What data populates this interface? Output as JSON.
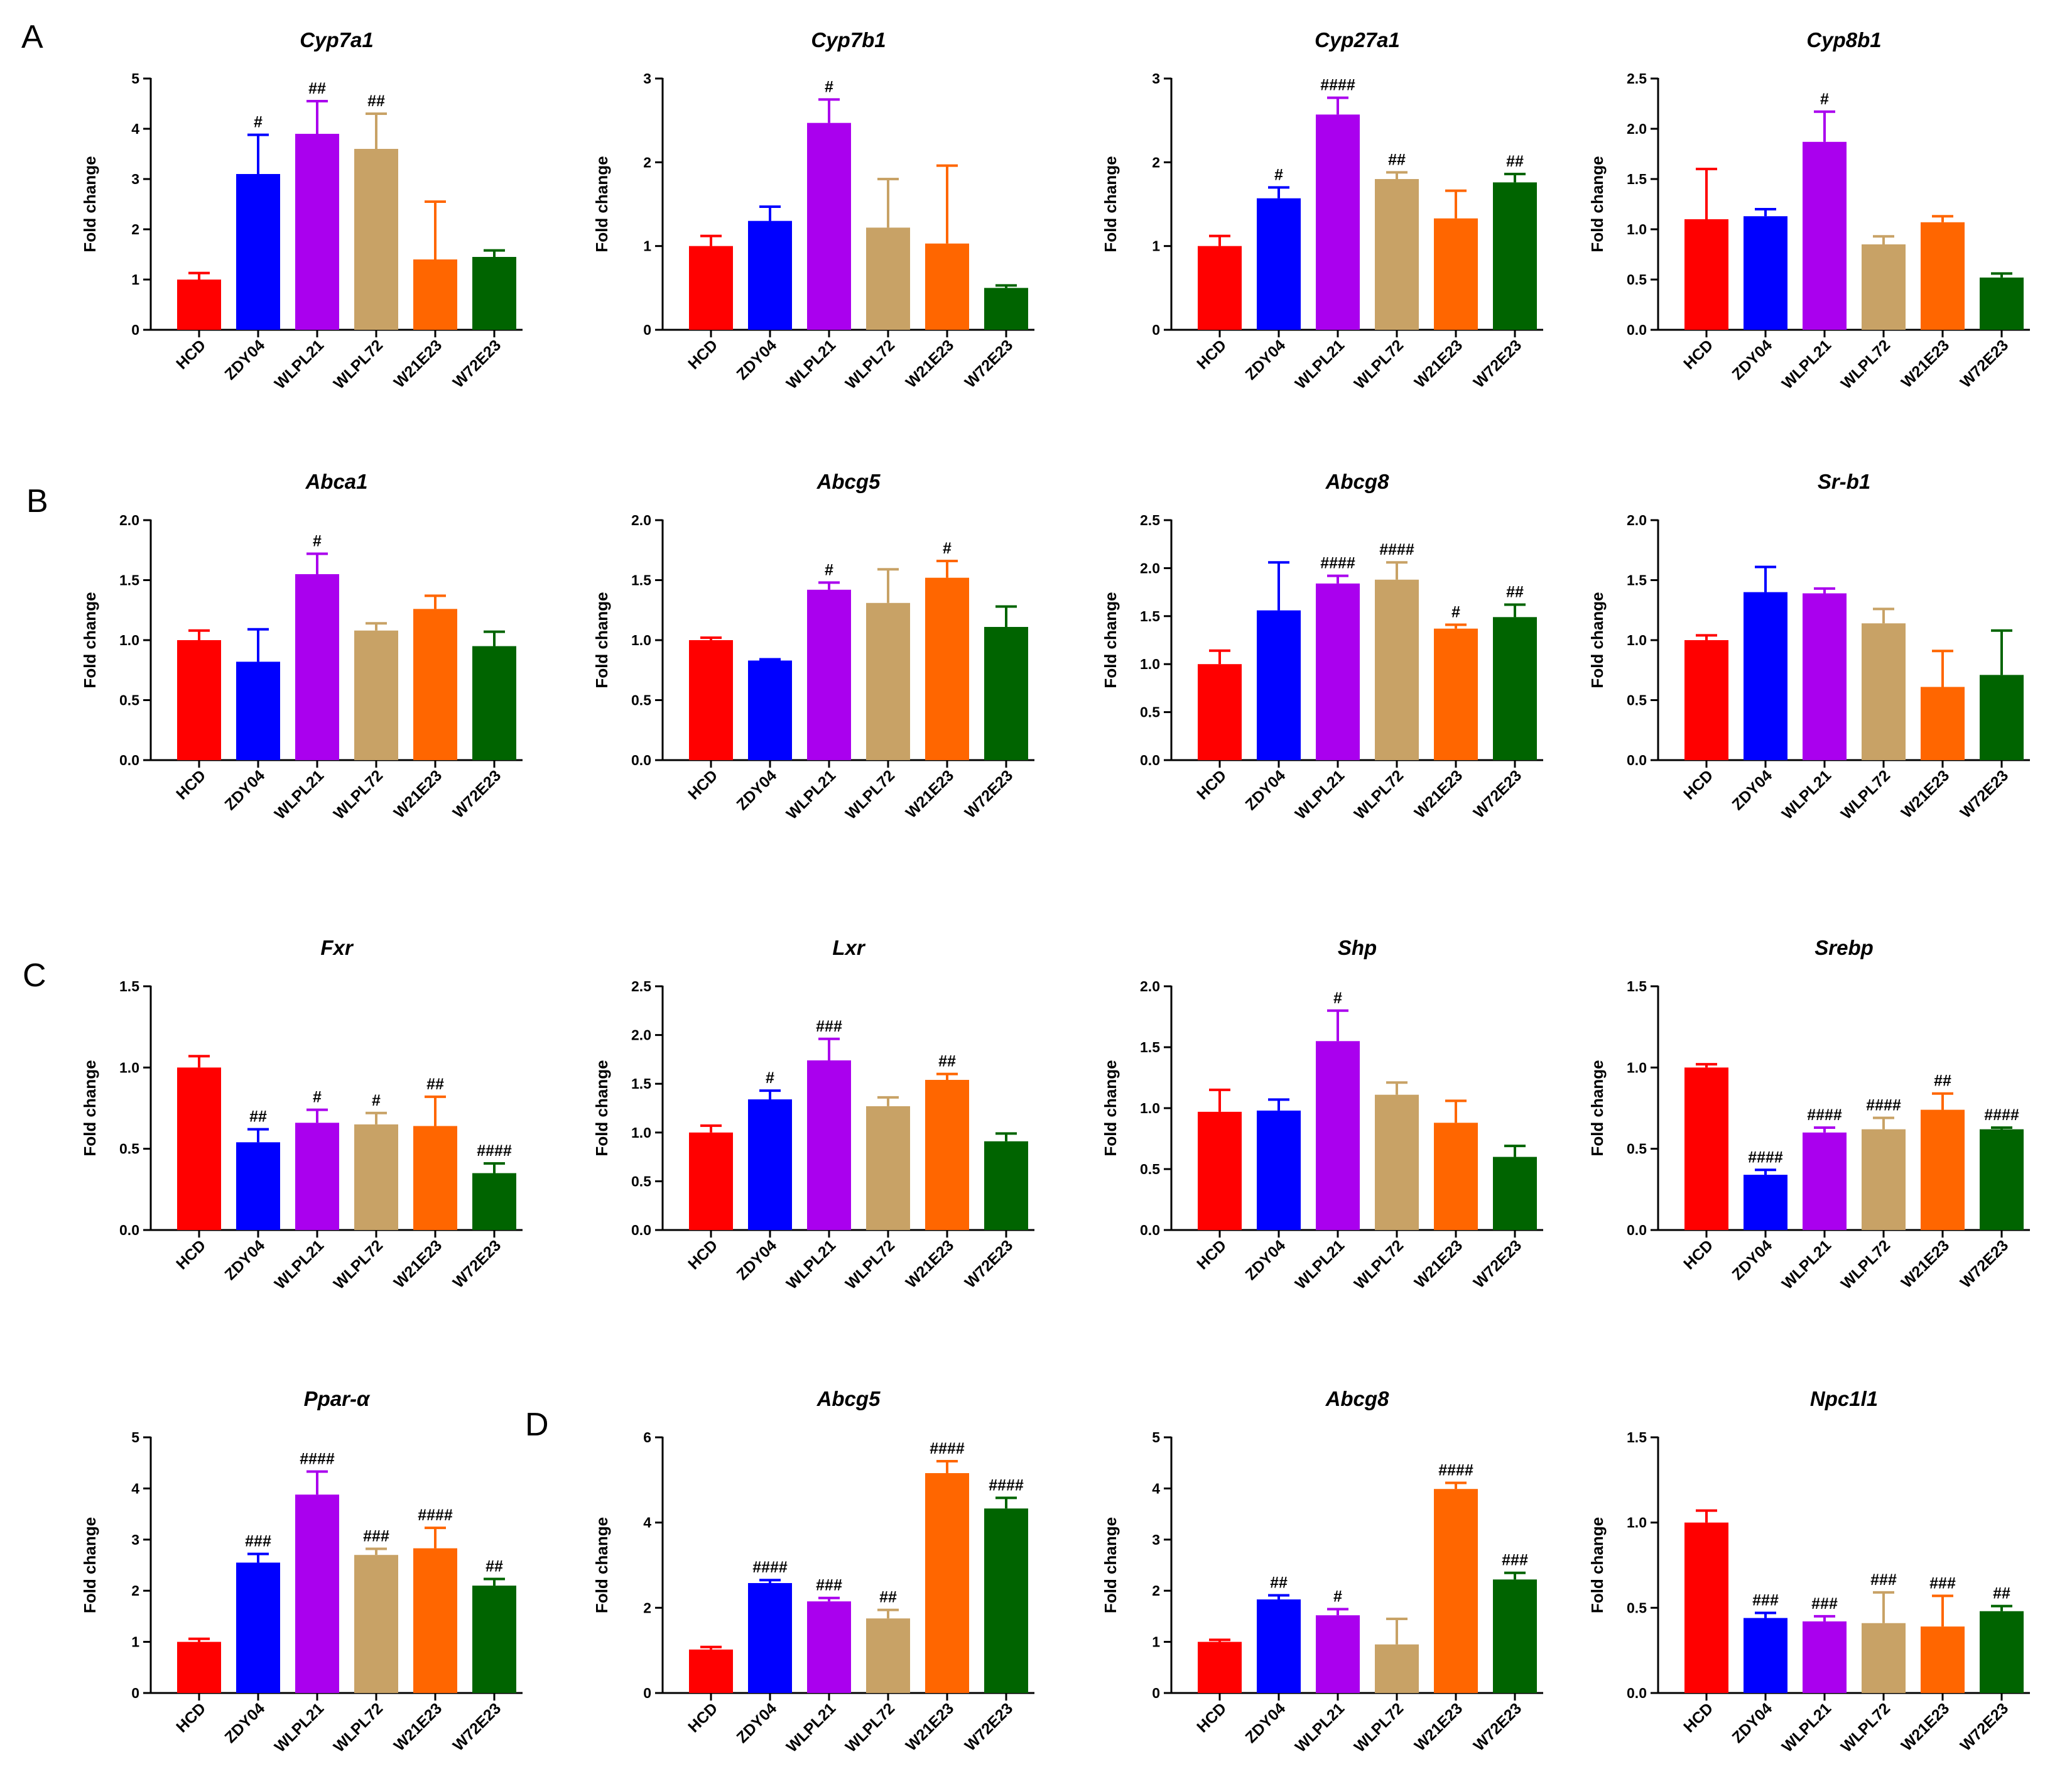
{
  "panel_labels": [
    "A",
    "B",
    "C",
    "D"
  ],
  "colors": {
    "HCD": "#ff0000",
    "ZDY04": "#0000ff",
    "WLPL21": "#aa00ee",
    "WLPL72": "#c8a266",
    "W21E23": "#ff6600",
    "W72E23": "#006400"
  },
  "chart_data": [
    {
      "type": "bar",
      "title": "Cyp7a1",
      "ylabel": "Fold change",
      "ylim": [
        0,
        5
      ],
      "yticks": [
        "0",
        "1",
        "2",
        "3",
        "4",
        "5"
      ],
      "categories": [
        "HCD",
        "ZDY04",
        "WLPL21",
        "WLPL72",
        "W21E23",
        "W72E23"
      ],
      "values": [
        1.0,
        3.1,
        3.9,
        3.6,
        1.4,
        1.45
      ],
      "errors": [
        0.13,
        0.78,
        0.65,
        0.7,
        1.15,
        0.13
      ],
      "annotations": [
        "",
        "#",
        "##",
        "##",
        "",
        ""
      ]
    },
    {
      "type": "bar",
      "title": "Cyp7b1",
      "ylabel": "Fold change",
      "ylim": [
        0,
        3
      ],
      "yticks": [
        "0",
        "1",
        "2",
        "3"
      ],
      "categories": [
        "HCD",
        "ZDY04",
        "WLPL21",
        "WLPL72",
        "W21E23",
        "W72E23"
      ],
      "values": [
        1.0,
        1.3,
        2.47,
        1.22,
        1.03,
        0.5
      ],
      "errors": [
        0.12,
        0.17,
        0.28,
        0.58,
        0.93,
        0.03
      ],
      "annotations": [
        "",
        "",
        "#",
        "",
        "",
        ""
      ]
    },
    {
      "type": "bar",
      "title": "Cyp27a1",
      "ylabel": "Fold change",
      "ylim": [
        0,
        3
      ],
      "yticks": [
        "0",
        "1",
        "2",
        "3"
      ],
      "categories": [
        "HCD",
        "ZDY04",
        "WLPL21",
        "WLPL72",
        "W21E23",
        "W72E23"
      ],
      "values": [
        1.0,
        1.57,
        2.57,
        1.8,
        1.33,
        1.76
      ],
      "errors": [
        0.12,
        0.13,
        0.2,
        0.08,
        0.33,
        0.1
      ],
      "annotations": [
        "",
        "#",
        "####",
        "##",
        "",
        "##"
      ]
    },
    {
      "type": "bar",
      "title": "Cyp8b1",
      "ylabel": "Fold change",
      "ylim": [
        0,
        2.5
      ],
      "yticks": [
        "0.0",
        "0.5",
        "1.0",
        "1.5",
        "2.0",
        "2.5"
      ],
      "categories": [
        "HCD",
        "ZDY04",
        "WLPL21",
        "WLPL72",
        "W21E23",
        "W72E23"
      ],
      "values": [
        1.1,
        1.13,
        1.87,
        0.85,
        1.07,
        0.52
      ],
      "errors": [
        0.5,
        0.07,
        0.3,
        0.08,
        0.06,
        0.04
      ],
      "annotations": [
        "",
        "",
        "#",
        "",
        "",
        ""
      ]
    },
    {
      "type": "bar",
      "title": "Abca1",
      "ylabel": "Fold change",
      "ylim": [
        0,
        2
      ],
      "yticks": [
        "0.0",
        "0.5",
        "1.0",
        "1.5",
        "2.0"
      ],
      "categories": [
        "HCD",
        "ZDY04",
        "WLPL21",
        "WLPL72",
        "W21E23",
        "W72E23"
      ],
      "values": [
        1.0,
        0.82,
        1.55,
        1.08,
        1.26,
        0.95
      ],
      "errors": [
        0.08,
        0.27,
        0.17,
        0.06,
        0.11,
        0.12
      ],
      "annotations": [
        "",
        "",
        "#",
        "",
        "",
        ""
      ]
    },
    {
      "type": "bar",
      "title": "Abcg5",
      "ylabel": "Fold change",
      "ylim": [
        0,
        2
      ],
      "yticks": [
        "0.0",
        "0.5",
        "1.0",
        "1.5",
        "2.0"
      ],
      "categories": [
        "HCD",
        "ZDY04",
        "WLPL21",
        "WLPL72",
        "W21E23",
        "W72E23"
      ],
      "values": [
        1.0,
        0.83,
        1.42,
        1.31,
        1.52,
        1.11
      ],
      "errors": [
        0.02,
        0.01,
        0.06,
        0.28,
        0.14,
        0.17
      ],
      "annotations": [
        "",
        "",
        "#",
        "",
        "#",
        ""
      ]
    },
    {
      "type": "bar",
      "title": "Abcg8",
      "ylabel": "Fold change",
      "ylim": [
        0,
        2.5
      ],
      "yticks": [
        "0.0",
        "0.5",
        "1.0",
        "1.5",
        "2.0",
        "2.5"
      ],
      "categories": [
        "HCD",
        "ZDY04",
        "WLPL21",
        "WLPL72",
        "W21E23",
        "W72E23"
      ],
      "values": [
        1.0,
        1.56,
        1.84,
        1.88,
        1.37,
        1.49
      ],
      "errors": [
        0.14,
        0.5,
        0.08,
        0.18,
        0.04,
        0.13
      ],
      "annotations": [
        "",
        "",
        "####",
        "####",
        "#",
        "##"
      ]
    },
    {
      "type": "bar",
      "title": "Sr-b1",
      "ylabel": "Fold change",
      "ylim": [
        0,
        2
      ],
      "yticks": [
        "0.0",
        "0.5",
        "1.0",
        "1.5",
        "2.0"
      ],
      "categories": [
        "HCD",
        "ZDY04",
        "WLPL21",
        "WLPL72",
        "W21E23",
        "W72E23"
      ],
      "values": [
        1.0,
        1.4,
        1.39,
        1.14,
        0.61,
        0.71
      ],
      "errors": [
        0.04,
        0.21,
        0.04,
        0.12,
        0.3,
        0.37
      ],
      "annotations": [
        "",
        "",
        "",
        "",
        "",
        ""
      ]
    },
    {
      "type": "bar",
      "title": "Fxr",
      "ylabel": "Fold change",
      "ylim": [
        0,
        1.5
      ],
      "yticks": [
        "0.0",
        "0.5",
        "1.0",
        "1.5"
      ],
      "categories": [
        "HCD",
        "ZDY04",
        "WLPL21",
        "WLPL72",
        "W21E23",
        "W72E23"
      ],
      "values": [
        1.0,
        0.54,
        0.66,
        0.65,
        0.64,
        0.35
      ],
      "errors": [
        0.07,
        0.08,
        0.08,
        0.07,
        0.18,
        0.06
      ],
      "annotations": [
        "",
        "##",
        "#",
        "#",
        "##",
        "####"
      ]
    },
    {
      "type": "bar",
      "title": "Lxr",
      "ylabel": "Fold change",
      "ylim": [
        0,
        2.5
      ],
      "yticks": [
        "0.0",
        "0.5",
        "1.0",
        "1.5",
        "2.0",
        "2.5"
      ],
      "categories": [
        "HCD",
        "ZDY04",
        "WLPL21",
        "WLPL72",
        "W21E23",
        "W72E23"
      ],
      "values": [
        1.0,
        1.34,
        1.74,
        1.27,
        1.54,
        0.91
      ],
      "errors": [
        0.07,
        0.09,
        0.22,
        0.09,
        0.06,
        0.08
      ],
      "annotations": [
        "",
        "#",
        "###",
        "",
        "##",
        ""
      ]
    },
    {
      "type": "bar",
      "title": "Shp",
      "ylabel": "Fold change",
      "ylim": [
        0,
        2
      ],
      "yticks": [
        "0.0",
        "0.5",
        "1.0",
        "1.5",
        "2.0"
      ],
      "categories": [
        "HCD",
        "ZDY04",
        "WLPL21",
        "WLPL72",
        "W21E23",
        "W72E23"
      ],
      "values": [
        0.97,
        0.98,
        1.55,
        1.11,
        0.88,
        0.6
      ],
      "errors": [
        0.18,
        0.09,
        0.25,
        0.1,
        0.18,
        0.09
      ],
      "annotations": [
        "",
        "",
        "#",
        "",
        "",
        ""
      ]
    },
    {
      "type": "bar",
      "title": "Srebp",
      "ylabel": "Fold change",
      "ylim": [
        0,
        1.5
      ],
      "yticks": [
        "0.0",
        "0.5",
        "1.0",
        "1.5"
      ],
      "categories": [
        "HCD",
        "ZDY04",
        "WLPL21",
        "WLPL72",
        "W21E23",
        "W72E23"
      ],
      "values": [
        1.0,
        0.34,
        0.6,
        0.62,
        0.74,
        0.62
      ],
      "errors": [
        0.02,
        0.03,
        0.03,
        0.07,
        0.1,
        0.01
      ],
      "annotations": [
        "",
        "####",
        "####",
        "####",
        "##",
        "####"
      ]
    },
    {
      "type": "bar",
      "title": "Ppar-α",
      "ylabel": "Fold change",
      "ylim": [
        0,
        5
      ],
      "yticks": [
        "0",
        "1",
        "2",
        "3",
        "4",
        "5"
      ],
      "categories": [
        "HCD",
        "ZDY04",
        "WLPL21",
        "WLPL72",
        "W21E23",
        "W72E23"
      ],
      "values": [
        1.0,
        2.55,
        3.88,
        2.7,
        2.83,
        2.1
      ],
      "errors": [
        0.06,
        0.17,
        0.45,
        0.12,
        0.4,
        0.13
      ],
      "annotations": [
        "",
        "###",
        "####",
        "###",
        "####",
        "##"
      ]
    },
    {
      "type": "bar",
      "title": "Abcg5",
      "ylabel": "Fold change",
      "ylim": [
        0,
        6
      ],
      "yticks": [
        "0",
        "2",
        "4",
        "6"
      ],
      "categories": [
        "HCD",
        "ZDY04",
        "WLPL21",
        "WLPL72",
        "W21E23",
        "W72E23"
      ],
      "values": [
        1.02,
        2.58,
        2.15,
        1.75,
        5.16,
        4.33
      ],
      "errors": [
        0.06,
        0.07,
        0.08,
        0.2,
        0.28,
        0.25
      ],
      "annotations": [
        "",
        "####",
        "###",
        "##",
        "####",
        "####"
      ]
    },
    {
      "type": "bar",
      "title": "Abcg8",
      "ylabel": "Fold change",
      "ylim": [
        0,
        5
      ],
      "yticks": [
        "0",
        "1",
        "2",
        "3",
        "4",
        "5"
      ],
      "categories": [
        "HCD",
        "ZDY04",
        "WLPL21",
        "WLPL72",
        "W21E23",
        "W72E23"
      ],
      "values": [
        1.0,
        1.83,
        1.52,
        0.95,
        3.99,
        2.22
      ],
      "errors": [
        0.04,
        0.08,
        0.12,
        0.5,
        0.12,
        0.13
      ],
      "annotations": [
        "",
        "##",
        "#",
        "",
        "####",
        "###"
      ]
    },
    {
      "type": "bar",
      "title": "Npc1l1",
      "ylabel": "Fold change",
      "ylim": [
        0,
        1.5
      ],
      "yticks": [
        "0.0",
        "0.5",
        "1.0",
        "1.5"
      ],
      "categories": [
        "HCD",
        "ZDY04",
        "WLPL21",
        "WLPL72",
        "W21E23",
        "W72E23"
      ],
      "values": [
        1.0,
        0.44,
        0.42,
        0.41,
        0.39,
        0.48
      ],
      "errors": [
        0.07,
        0.03,
        0.03,
        0.18,
        0.18,
        0.03
      ],
      "annotations": [
        "",
        "###",
        "###",
        "###",
        "###",
        "##"
      ]
    }
  ]
}
